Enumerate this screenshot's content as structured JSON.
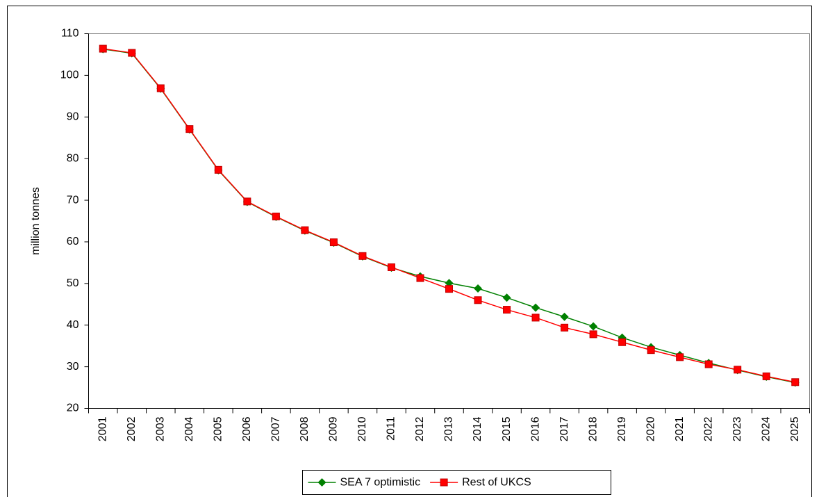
{
  "chart_data": {
    "type": "line",
    "y_label": "million tonnes",
    "categories": [
      "2001",
      "2002",
      "2003",
      "2004",
      "2005",
      "2006",
      "2007",
      "2008",
      "2009",
      "2010",
      "2011",
      "2012",
      "2013",
      "2014",
      "2015",
      "2016",
      "2017",
      "2018",
      "2019",
      "2020",
      "2021",
      "2022",
      "2023",
      "2024",
      "2025"
    ],
    "series": [
      {
        "name": "SEA 7 optimistic",
        "color": "#008000",
        "marker": "diamond",
        "values": [
          106.3,
          105.3,
          96.8,
          87.0,
          77.2,
          69.6,
          66.0,
          62.7,
          59.8,
          56.5,
          53.8,
          51.7,
          50.1,
          48.8,
          46.6,
          44.2,
          42.0,
          39.7,
          37.0,
          34.7,
          32.8,
          30.9,
          29.2,
          27.6,
          26.2
        ]
      },
      {
        "name": "Rest of UKCS",
        "color": "#ff0000",
        "marker": "square",
        "values": [
          106.4,
          105.4,
          96.9,
          87.1,
          77.3,
          69.7,
          66.1,
          62.8,
          59.9,
          56.6,
          53.9,
          51.3,
          48.7,
          46.0,
          43.7,
          41.8,
          39.4,
          37.8,
          35.9,
          34.0,
          32.3,
          30.6,
          29.3,
          27.7,
          26.3
        ]
      }
    ],
    "ylim": [
      20,
      110
    ],
    "yticks": [
      20,
      30,
      40,
      50,
      60,
      70,
      80,
      90,
      100,
      110
    ],
    "grid": false,
    "legend": "bottom"
  }
}
